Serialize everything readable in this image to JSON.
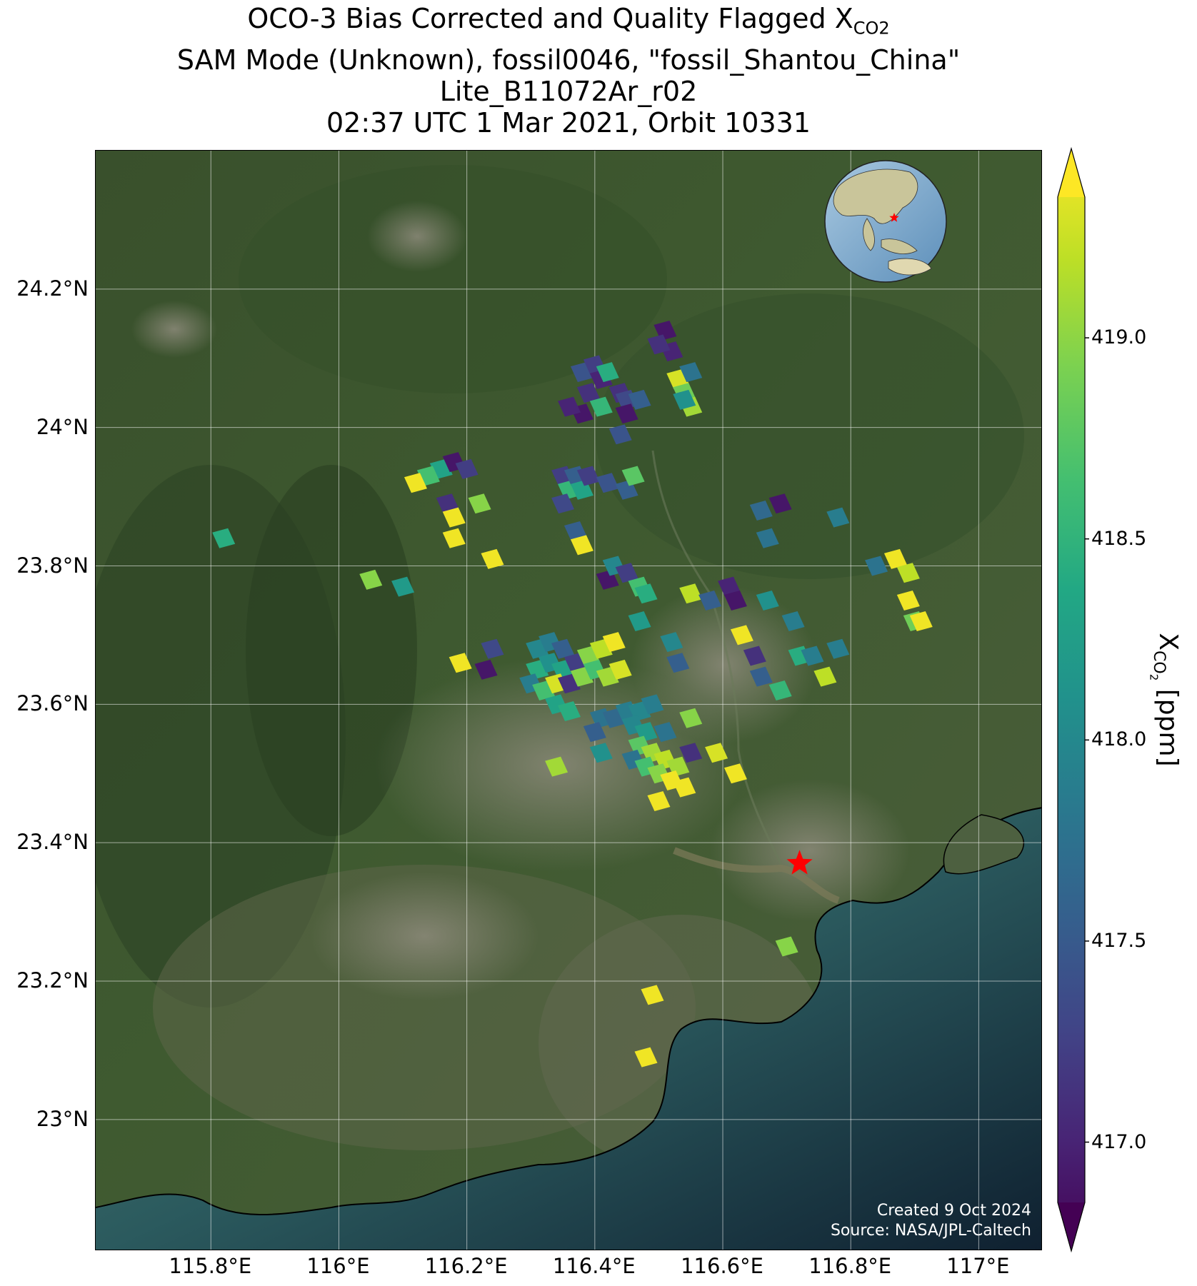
{
  "title": {
    "line1_prefix": "OCO-3 Bias Corrected and Quality Flagged X",
    "line1_sub": "CO2",
    "line2": "SAM Mode (Unknown), fossil0046, \"fossil_Shantou_China\"",
    "line3": "Lite_B11072Ar_r02",
    "line4": "02:37 UTC 1 Mar 2021, Orbit 10331"
  },
  "map": {
    "lon_range": [
      115.62,
      117.1
    ],
    "lat_range": [
      22.81,
      24.4
    ],
    "lat_ticks": [
      {
        "value": 23.0,
        "label": "23°N"
      },
      {
        "value": 23.2,
        "label": "23.2°N"
      },
      {
        "value": 23.4,
        "label": "23.4°N"
      },
      {
        "value": 23.6,
        "label": "23.6°N"
      },
      {
        "value": 23.8,
        "label": "23.8°N"
      },
      {
        "value": 24.0,
        "label": "24°N"
      },
      {
        "value": 24.2,
        "label": "24.2°N"
      }
    ],
    "lon_ticks": [
      {
        "value": 115.8,
        "label": "115.8°E"
      },
      {
        "value": 116.0,
        "label": "116°E"
      },
      {
        "value": 116.2,
        "label": "116.2°E"
      },
      {
        "value": 116.4,
        "label": "116.4°E"
      },
      {
        "value": 116.6,
        "label": "116.6°E"
      },
      {
        "value": 116.8,
        "label": "116.8°E"
      },
      {
        "value": 117.0,
        "label": "117°E"
      }
    ],
    "target": {
      "name": "fossil_Shantou_China",
      "lon": 116.72,
      "lat": 23.37,
      "marker": "red-star",
      "color": "#ff0000"
    },
    "basemap": "satellite imagery",
    "grid": true,
    "credit_line1": "Created 9 Oct 2024",
    "credit_line2": "Source: NASA/JPL-Caltech",
    "inset_globe": {
      "center_lon": 115,
      "center_lat": 20,
      "marker": "red-star"
    }
  },
  "chart_data": {
    "type": "scatter",
    "title": "OCO-3 Bias Corrected and Quality Flagged XCO2",
    "xlabel": "",
    "ylabel": "",
    "xlim": [
      115.62,
      117.1
    ],
    "ylim": [
      22.81,
      24.4
    ],
    "colorbar": {
      "label": "X_CO2 [ppm]",
      "range": [
        416.85,
        419.35
      ],
      "ticks": [
        417.0,
        417.5,
        418.0,
        418.5,
        419.0
      ],
      "tick_labels": [
        "417.0",
        "417.5",
        "418.0",
        "418.5",
        "419.0"
      ],
      "colormap": "viridis",
      "extend": "both"
    },
    "points": [
      {
        "lon": 116.51,
        "lat": 24.14,
        "xco2": 417.0
      },
      {
        "lon": 116.52,
        "lat": 24.11,
        "xco2": 417.1
      },
      {
        "lon": 116.5,
        "lat": 24.12,
        "xco2": 417.2
      },
      {
        "lon": 116.53,
        "lat": 24.07,
        "xco2": 419.2
      },
      {
        "lon": 116.54,
        "lat": 24.05,
        "xco2": 418.8
      },
      {
        "lon": 116.55,
        "lat": 24.08,
        "xco2": 417.8
      },
      {
        "lon": 116.55,
        "lat": 24.03,
        "xco2": 419.0
      },
      {
        "lon": 116.54,
        "lat": 24.04,
        "xco2": 418.1
      },
      {
        "lon": 116.38,
        "lat": 24.08,
        "xco2": 417.5
      },
      {
        "lon": 116.4,
        "lat": 24.09,
        "xco2": 417.3
      },
      {
        "lon": 116.41,
        "lat": 24.07,
        "xco2": 417.1
      },
      {
        "lon": 116.42,
        "lat": 24.08,
        "xco2": 418.4
      },
      {
        "lon": 116.39,
        "lat": 24.05,
        "xco2": 417.2
      },
      {
        "lon": 116.41,
        "lat": 24.03,
        "xco2": 418.5
      },
      {
        "lon": 116.38,
        "lat": 24.02,
        "xco2": 417.0
      },
      {
        "lon": 116.36,
        "lat": 24.03,
        "xco2": 417.1
      },
      {
        "lon": 116.44,
        "lat": 24.05,
        "xco2": 417.2
      },
      {
        "lon": 116.45,
        "lat": 24.04,
        "xco2": 417.4
      },
      {
        "lon": 116.47,
        "lat": 24.04,
        "xco2": 417.6
      },
      {
        "lon": 116.45,
        "lat": 24.02,
        "xco2": 417.0
      },
      {
        "lon": 116.44,
        "lat": 23.99,
        "xco2": 417.5
      },
      {
        "lon": 116.16,
        "lat": 23.94,
        "xco2": 418.3
      },
      {
        "lon": 116.14,
        "lat": 23.93,
        "xco2": 418.6
      },
      {
        "lon": 116.12,
        "lat": 23.92,
        "xco2": 419.3
      },
      {
        "lon": 116.18,
        "lat": 23.95,
        "xco2": 417.0
      },
      {
        "lon": 116.2,
        "lat": 23.94,
        "xco2": 417.3
      },
      {
        "lon": 116.17,
        "lat": 23.89,
        "xco2": 417.2
      },
      {
        "lon": 116.18,
        "lat": 23.87,
        "xco2": 419.3
      },
      {
        "lon": 116.22,
        "lat": 23.89,
        "xco2": 418.9
      },
      {
        "lon": 116.18,
        "lat": 23.84,
        "xco2": 419.3
      },
      {
        "lon": 115.82,
        "lat": 23.84,
        "xco2": 418.4
      },
      {
        "lon": 116.24,
        "lat": 23.81,
        "xco2": 419.3
      },
      {
        "lon": 116.05,
        "lat": 23.78,
        "xco2": 418.9
      },
      {
        "lon": 116.1,
        "lat": 23.77,
        "xco2": 418.2
      },
      {
        "lon": 116.35,
        "lat": 23.93,
        "xco2": 417.3
      },
      {
        "lon": 116.36,
        "lat": 23.91,
        "xco2": 418.5
      },
      {
        "lon": 116.37,
        "lat": 23.93,
        "xco2": 417.6
      },
      {
        "lon": 116.35,
        "lat": 23.89,
        "xco2": 417.4
      },
      {
        "lon": 116.38,
        "lat": 23.91,
        "xco2": 418.3
      },
      {
        "lon": 116.39,
        "lat": 23.93,
        "xco2": 417.3
      },
      {
        "lon": 116.42,
        "lat": 23.92,
        "xco2": 417.5
      },
      {
        "lon": 116.45,
        "lat": 23.91,
        "xco2": 417.6
      },
      {
        "lon": 116.46,
        "lat": 23.93,
        "xco2": 418.7
      },
      {
        "lon": 116.37,
        "lat": 23.85,
        "xco2": 417.6
      },
      {
        "lon": 116.38,
        "lat": 23.83,
        "xco2": 419.3
      },
      {
        "lon": 116.42,
        "lat": 23.78,
        "xco2": 417.0
      },
      {
        "lon": 116.43,
        "lat": 23.8,
        "xco2": 418.0
      },
      {
        "lon": 116.45,
        "lat": 23.79,
        "xco2": 417.3
      },
      {
        "lon": 116.47,
        "lat": 23.77,
        "xco2": 418.6
      },
      {
        "lon": 116.48,
        "lat": 23.76,
        "xco2": 418.4
      },
      {
        "lon": 116.55,
        "lat": 23.76,
        "xco2": 419.1
      },
      {
        "lon": 116.58,
        "lat": 23.75,
        "xco2": 417.6
      },
      {
        "lon": 116.61,
        "lat": 23.77,
        "xco2": 417.1
      },
      {
        "lon": 116.62,
        "lat": 23.75,
        "xco2": 417.0
      },
      {
        "lon": 116.67,
        "lat": 23.75,
        "xco2": 418.1
      },
      {
        "lon": 116.71,
        "lat": 23.72,
        "xco2": 417.9
      },
      {
        "lon": 116.72,
        "lat": 23.67,
        "xco2": 418.4
      },
      {
        "lon": 116.74,
        "lat": 23.67,
        "xco2": 417.9
      },
      {
        "lon": 116.66,
        "lat": 23.88,
        "xco2": 417.7
      },
      {
        "lon": 116.67,
        "lat": 23.84,
        "xco2": 417.8
      },
      {
        "lon": 116.69,
        "lat": 23.89,
        "xco2": 417.0
      },
      {
        "lon": 116.84,
        "lat": 23.8,
        "xco2": 417.8
      },
      {
        "lon": 116.87,
        "lat": 23.81,
        "xco2": 419.3
      },
      {
        "lon": 116.89,
        "lat": 23.79,
        "xco2": 419.1
      },
      {
        "lon": 116.89,
        "lat": 23.75,
        "xco2": 419.3
      },
      {
        "lon": 116.9,
        "lat": 23.72,
        "xco2": 418.8
      },
      {
        "lon": 116.91,
        "lat": 23.72,
        "xco2": 419.3
      },
      {
        "lon": 116.63,
        "lat": 23.7,
        "xco2": 419.3
      },
      {
        "lon": 116.65,
        "lat": 23.67,
        "xco2": 417.2
      },
      {
        "lon": 116.66,
        "lat": 23.64,
        "xco2": 417.6
      },
      {
        "lon": 116.69,
        "lat": 23.62,
        "xco2": 418.5
      },
      {
        "lon": 116.78,
        "lat": 23.68,
        "xco2": 417.9
      },
      {
        "lon": 116.76,
        "lat": 23.64,
        "xco2": 419.1
      },
      {
        "lon": 116.52,
        "lat": 23.69,
        "xco2": 418.0
      },
      {
        "lon": 116.53,
        "lat": 23.66,
        "xco2": 417.6
      },
      {
        "lon": 116.47,
        "lat": 23.72,
        "xco2": 418.2
      },
      {
        "lon": 116.24,
        "lat": 23.68,
        "xco2": 417.4
      },
      {
        "lon": 116.19,
        "lat": 23.66,
        "xco2": 419.3
      },
      {
        "lon": 116.23,
        "lat": 23.65,
        "xco2": 417.0
      },
      {
        "lon": 116.31,
        "lat": 23.68,
        "xco2": 418.0
      },
      {
        "lon": 116.33,
        "lat": 23.69,
        "xco2": 417.9
      },
      {
        "lon": 116.35,
        "lat": 23.68,
        "xco2": 417.6
      },
      {
        "lon": 116.31,
        "lat": 23.65,
        "xco2": 418.4
      },
      {
        "lon": 116.33,
        "lat": 23.66,
        "xco2": 418.1
      },
      {
        "lon": 116.35,
        "lat": 23.65,
        "xco2": 418.3
      },
      {
        "lon": 116.37,
        "lat": 23.66,
        "xco2": 417.3
      },
      {
        "lon": 116.39,
        "lat": 23.67,
        "xco2": 418.9
      },
      {
        "lon": 116.41,
        "lat": 23.68,
        "xco2": 419.1
      },
      {
        "lon": 116.43,
        "lat": 23.69,
        "xco2": 419.3
      },
      {
        "lon": 116.3,
        "lat": 23.63,
        "xco2": 417.9
      },
      {
        "lon": 116.32,
        "lat": 23.62,
        "xco2": 418.6
      },
      {
        "lon": 116.34,
        "lat": 23.63,
        "xco2": 419.2
      },
      {
        "lon": 116.36,
        "lat": 23.63,
        "xco2": 417.2
      },
      {
        "lon": 116.38,
        "lat": 23.64,
        "xco2": 418.9
      },
      {
        "lon": 116.4,
        "lat": 23.65,
        "xco2": 418.6
      },
      {
        "lon": 116.42,
        "lat": 23.64,
        "xco2": 419.0
      },
      {
        "lon": 116.44,
        "lat": 23.65,
        "xco2": 419.2
      },
      {
        "lon": 116.34,
        "lat": 23.6,
        "xco2": 418.3
      },
      {
        "lon": 116.36,
        "lat": 23.59,
        "xco2": 418.4
      },
      {
        "lon": 116.41,
        "lat": 23.58,
        "xco2": 417.8
      },
      {
        "lon": 116.43,
        "lat": 23.58,
        "xco2": 417.7
      },
      {
        "lon": 116.45,
        "lat": 23.59,
        "xco2": 417.9
      },
      {
        "lon": 116.47,
        "lat": 23.59,
        "xco2": 418.0
      },
      {
        "lon": 116.49,
        "lat": 23.6,
        "xco2": 417.9
      },
      {
        "lon": 116.4,
        "lat": 23.56,
        "xco2": 417.6
      },
      {
        "lon": 116.46,
        "lat": 23.57,
        "xco2": 418.0
      },
      {
        "lon": 116.48,
        "lat": 23.56,
        "xco2": 418.2
      },
      {
        "lon": 116.51,
        "lat": 23.56,
        "xco2": 417.8
      },
      {
        "lon": 116.55,
        "lat": 23.58,
        "xco2": 418.9
      },
      {
        "lon": 116.47,
        "lat": 23.54,
        "xco2": 418.7
      },
      {
        "lon": 116.49,
        "lat": 23.53,
        "xco2": 419.0
      },
      {
        "lon": 116.51,
        "lat": 23.52,
        "xco2": 419.1
      },
      {
        "lon": 116.53,
        "lat": 23.51,
        "xco2": 419.0
      },
      {
        "lon": 116.41,
        "lat": 23.53,
        "xco2": 418.1
      },
      {
        "lon": 116.46,
        "lat": 23.52,
        "xco2": 417.8
      },
      {
        "lon": 116.48,
        "lat": 23.51,
        "xco2": 418.6
      },
      {
        "lon": 116.5,
        "lat": 23.5,
        "xco2": 418.9
      },
      {
        "lon": 116.52,
        "lat": 23.49,
        "xco2": 419.3
      },
      {
        "lon": 116.54,
        "lat": 23.48,
        "xco2": 419.3
      },
      {
        "lon": 116.55,
        "lat": 23.53,
        "xco2": 417.2
      },
      {
        "lon": 116.59,
        "lat": 23.53,
        "xco2": 419.2
      },
      {
        "lon": 116.34,
        "lat": 23.51,
        "xco2": 419.0
      },
      {
        "lon": 116.62,
        "lat": 23.5,
        "xco2": 419.3
      },
      {
        "lon": 116.5,
        "lat": 23.46,
        "xco2": 419.3
      },
      {
        "lon": 116.7,
        "lat": 23.25,
        "xco2": 418.9
      },
      {
        "lon": 116.49,
        "lat": 23.18,
        "xco2": 419.3
      },
      {
        "lon": 116.48,
        "lat": 23.09,
        "xco2": 419.3
      },
      {
        "lon": 116.78,
        "lat": 23.87,
        "xco2": 417.9
      }
    ]
  }
}
